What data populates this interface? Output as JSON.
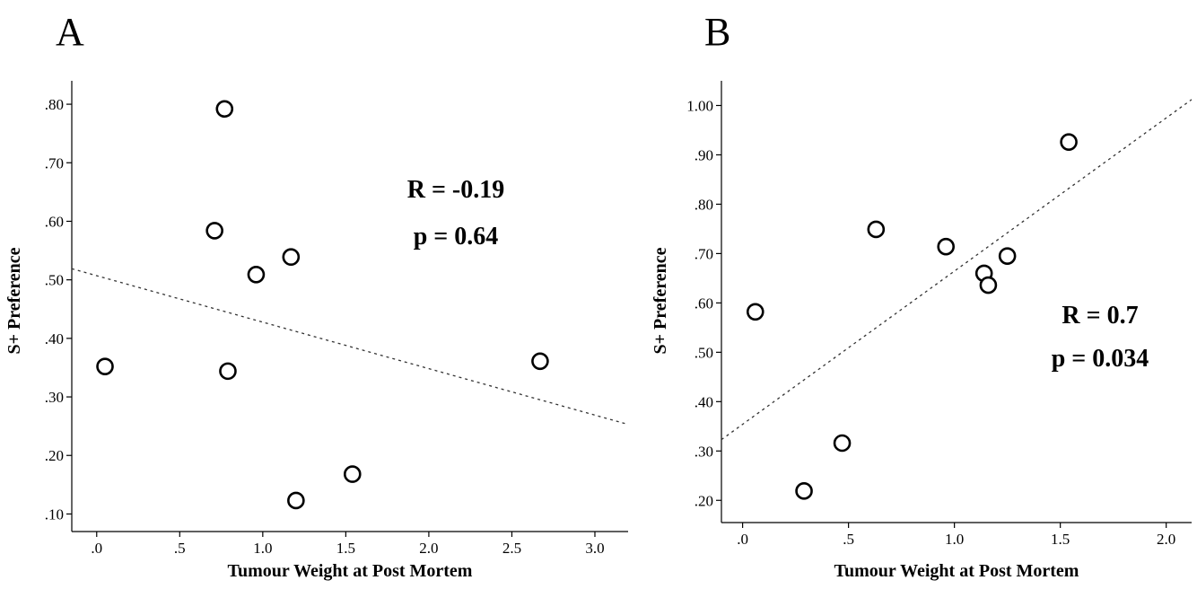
{
  "chart_data": [
    {
      "panel": "A",
      "type": "scatter",
      "xlabel": "Tumour Weight at Post Mortem",
      "ylabel": "S+ Preference",
      "xlim": [
        -0.15,
        3.2
      ],
      "ylim": [
        0.07,
        0.84
      ],
      "x_ticks": [
        0,
        0.5,
        1.0,
        1.5,
        2.0,
        2.5,
        3.0
      ],
      "x_tick_labels": [
        ".0",
        ".5",
        "1.0",
        "1.5",
        "2.0",
        "2.5",
        "3.0"
      ],
      "y_ticks": [
        0.1,
        0.2,
        0.3,
        0.4,
        0.5,
        0.6,
        0.7,
        0.8
      ],
      "y_tick_labels": [
        ".10",
        ".20",
        ".30",
        ".40",
        ".50",
        ".60",
        ".70",
        ".80"
      ],
      "points": [
        {
          "x": 0.05,
          "y": 0.352
        },
        {
          "x": 0.71,
          "y": 0.584
        },
        {
          "x": 0.77,
          "y": 0.792
        },
        {
          "x": 0.79,
          "y": 0.344
        },
        {
          "x": 0.96,
          "y": 0.509
        },
        {
          "x": 1.17,
          "y": 0.539
        },
        {
          "x": 1.2,
          "y": 0.123
        },
        {
          "x": 1.54,
          "y": 0.168
        },
        {
          "x": 2.67,
          "y": 0.361
        }
      ],
      "fit_line": {
        "x": [
          -0.15,
          3.2
        ],
        "y": [
          0.519,
          0.253
        ]
      },
      "annotations": [
        "R = -0.19",
        "p = 0.64"
      ]
    },
    {
      "panel": "B",
      "type": "scatter",
      "xlabel": "Tumour Weight at Post Mortem",
      "ylabel": "S+ Preference",
      "xlim": [
        -0.1,
        2.12
      ],
      "ylim": [
        0.155,
        1.05
      ],
      "x_ticks": [
        0,
        0.5,
        1.0,
        1.5,
        2.0
      ],
      "x_tick_labels": [
        ".0",
        ".5",
        "1.0",
        "1.5",
        "2.0"
      ],
      "y_ticks": [
        0.2,
        0.3,
        0.4,
        0.5,
        0.6,
        0.7,
        0.8,
        0.9,
        1.0
      ],
      "y_tick_labels": [
        ".20",
        ".30",
        ".40",
        ".50",
        ".60",
        ".70",
        ".80",
        ".90",
        "1.00"
      ],
      "points": [
        {
          "x": 0.06,
          "y": 0.582
        },
        {
          "x": 0.29,
          "y": 0.219
        },
        {
          "x": 0.47,
          "y": 0.316
        },
        {
          "x": 0.63,
          "y": 0.749
        },
        {
          "x": 0.96,
          "y": 0.714
        },
        {
          "x": 1.14,
          "y": 0.66
        },
        {
          "x": 1.16,
          "y": 0.636
        },
        {
          "x": 1.25,
          "y": 0.695
        },
        {
          "x": 1.54,
          "y": 0.926
        }
      ],
      "fit_line": {
        "x": [
          -0.1,
          2.12
        ],
        "y": [
          0.323,
          1.012
        ]
      },
      "annotations": [
        "R = 0.7",
        "p = 0.034"
      ]
    }
  ]
}
